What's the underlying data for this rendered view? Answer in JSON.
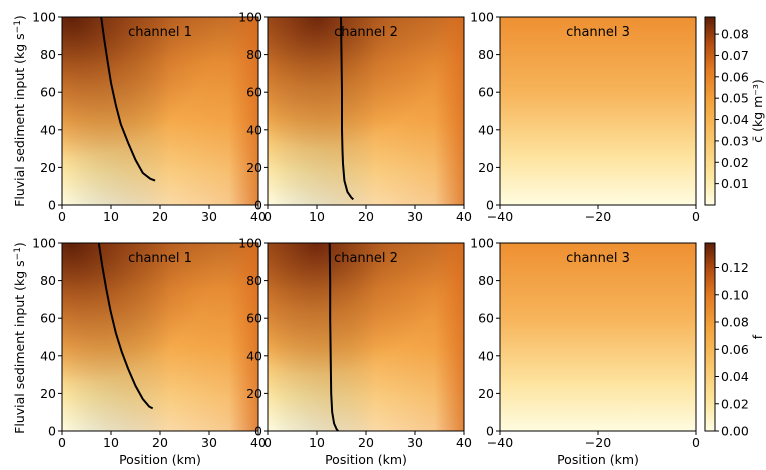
{
  "figure": {
    "ylabel_text": "Fluvial sediment input (kg s",
    "ylabel_sup": "−1",
    "ylabel_close": ")",
    "xlabel": "Position (km)"
  },
  "colors": {
    "low": "#fffde4",
    "mid": "#f4a33c",
    "high": "#6b240a",
    "line": "#000000"
  },
  "chart_data": [
    {
      "type": "heatmap",
      "row": 1,
      "title": "channel 1",
      "xlabel": "",
      "ylabel": "Fluvial sediment input (kg s−1)",
      "xlim": [
        0,
        40
      ],
      "ylim": [
        0,
        100
      ],
      "xticks": [
        "0",
        "10",
        "20",
        "30",
        "40"
      ],
      "yticks": [
        "0",
        "20",
        "40",
        "60",
        "80",
        "100"
      ],
      "contour": {
        "x": [
          8.0,
          8.5,
          9.2,
          10.0,
          11.0,
          12.0,
          13.5,
          15.0,
          16.5,
          18.0,
          19.0
        ],
        "y": [
          100,
          90,
          78,
          65,
          53,
          43,
          33,
          24,
          17,
          14,
          13
        ]
      }
    },
    {
      "type": "heatmap",
      "row": 1,
      "title": "channel 2",
      "xlim": [
        0,
        40
      ],
      "ylim": [
        0,
        100
      ],
      "xticks": [
        "0",
        "10",
        "20",
        "30",
        "40"
      ],
      "yticks": [
        "0",
        "20",
        "40",
        "60",
        "80",
        "100"
      ],
      "contour": {
        "x": [
          14.9,
          15.0,
          15.1,
          15.1,
          15.2,
          15.3,
          15.6,
          16.2,
          17.0,
          17.4
        ],
        "y": [
          100,
          80,
          60,
          40,
          29,
          22,
          13,
          7,
          4,
          3
        ]
      }
    },
    {
      "type": "heatmap",
      "row": 1,
      "title": "channel 3",
      "xlim": [
        -40,
        0
      ],
      "ylim": [
        0,
        100
      ],
      "xticks": [
        "−40",
        "−20",
        "0"
      ],
      "yticks": [
        "0",
        "20",
        "40",
        "60",
        "80",
        "100"
      ]
    },
    {
      "type": "heatmap",
      "row": 2,
      "title": "channel 1",
      "xlabel": "Position (km)",
      "ylabel": "Fluvial sediment input (kg s−1)",
      "xlim": [
        0,
        40
      ],
      "ylim": [
        0,
        100
      ],
      "xticks": [
        "0",
        "10",
        "20",
        "30",
        "40"
      ],
      "yticks": [
        "0",
        "20",
        "40",
        "60",
        "80",
        "100"
      ],
      "contour": {
        "x": [
          7.5,
          8.2,
          9.0,
          9.9,
          11.0,
          12.2,
          13.5,
          15.0,
          16.5,
          17.8,
          18.5
        ],
        "y": [
          100,
          88,
          76,
          64,
          52,
          42,
          33,
          24,
          17,
          13,
          12
        ]
      }
    },
    {
      "type": "heatmap",
      "row": 2,
      "title": "channel 2",
      "xlabel": "Position (km)",
      "xlim": [
        0,
        40
      ],
      "ylim": [
        0,
        100
      ],
      "xticks": [
        "0",
        "10",
        "20",
        "30",
        "40"
      ],
      "yticks": [
        "0",
        "20",
        "40",
        "60",
        "80",
        "100"
      ],
      "contour": {
        "x": [
          12.6,
          12.7,
          12.7,
          12.8,
          12.9,
          13.1,
          13.5,
          14.0,
          14.3
        ],
        "y": [
          100,
          80,
          60,
          40,
          20,
          10,
          4,
          1,
          0
        ]
      }
    },
    {
      "type": "heatmap",
      "row": 2,
      "title": "channel 3",
      "xlabel": "Position (km)",
      "xlim": [
        -40,
        0
      ],
      "ylim": [
        0,
        100
      ],
      "xticks": [
        "−40",
        "−20",
        "0"
      ],
      "yticks": [
        "0",
        "20",
        "40",
        "60",
        "80",
        "100"
      ]
    }
  ],
  "colorbars": [
    {
      "label": "c̄ (kg m⁻³)",
      "range": [
        0,
        0.088
      ],
      "ticks": [
        0.01,
        0.02,
        0.03,
        0.04,
        0.05,
        0.06,
        0.07,
        0.08
      ],
      "tick_labels": [
        "0.01",
        "0.02",
        "0.03",
        "0.04",
        "0.05",
        "0.06",
        "0.07",
        "0.08"
      ]
    },
    {
      "label": "f",
      "range": [
        0,
        0.138
      ],
      "ticks": [
        0.0,
        0.02,
        0.04,
        0.06,
        0.08,
        0.1,
        0.12
      ],
      "tick_labels": [
        "0.00",
        "0.02",
        "0.04",
        "0.06",
        "0.08",
        "0.10",
        "0.12"
      ]
    }
  ]
}
